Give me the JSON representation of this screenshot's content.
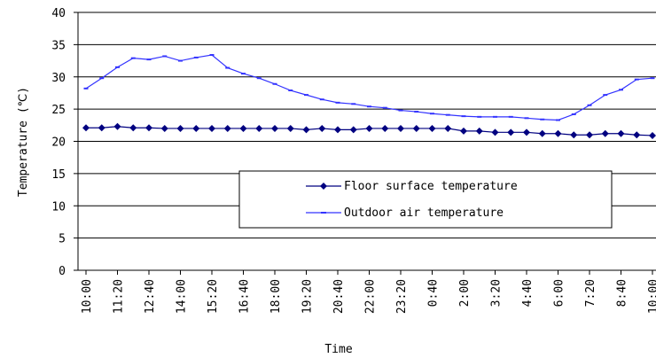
{
  "chart_data": {
    "type": "line",
    "x_label": "Time",
    "y_label": "Temperature (℃)",
    "categories": [
      "10:00",
      null,
      "11:20",
      null,
      "12:40",
      null,
      "14:00",
      null,
      "15:20",
      null,
      "16:40",
      null,
      "18:00",
      null,
      "19:20",
      null,
      "20:40",
      null,
      "22:00",
      null,
      "23:20",
      null,
      "0:40",
      null,
      "2:00",
      null,
      "3:20",
      null,
      "4:40",
      null,
      "6:00",
      null,
      "7:20",
      null,
      "8:40",
      null,
      "10:00"
    ],
    "series": [
      {
        "name": "Floor surface temperature",
        "color": "#000080",
        "marker": "diamond",
        "values": [
          22.1,
          22.1,
          22.3,
          22.1,
          22.1,
          22.0,
          22.0,
          22.0,
          22.0,
          22.0,
          22.0,
          22.0,
          22.0,
          22.0,
          21.8,
          22.0,
          21.8,
          21.8,
          22.0,
          22.0,
          22.0,
          22.0,
          22.0,
          22.0,
          21.6,
          21.6,
          21.4,
          21.4,
          21.4,
          21.2,
          21.2,
          21.0,
          21.0,
          21.2,
          21.2,
          21.0,
          20.9
        ]
      },
      {
        "name": "Outdoor air temperature",
        "color": "#3333ff",
        "marker": "dash",
        "values": [
          28.2,
          29.8,
          31.5,
          32.9,
          32.7,
          33.2,
          32.5,
          33.0,
          33.4,
          31.4,
          30.5,
          29.8,
          28.9,
          27.9,
          27.2,
          26.5,
          26.0,
          25.8,
          25.4,
          25.2,
          24.8,
          24.6,
          24.3,
          24.1,
          23.9,
          23.8,
          23.8,
          23.8,
          23.6,
          23.4,
          23.3,
          24.2,
          25.6,
          27.2,
          28.0,
          29.6,
          29.8
        ]
      }
    ],
    "ylim": [
      0,
      40
    ],
    "yticks": [
      0,
      5,
      10,
      15,
      20,
      25,
      30,
      35,
      40
    ],
    "grid": true
  }
}
